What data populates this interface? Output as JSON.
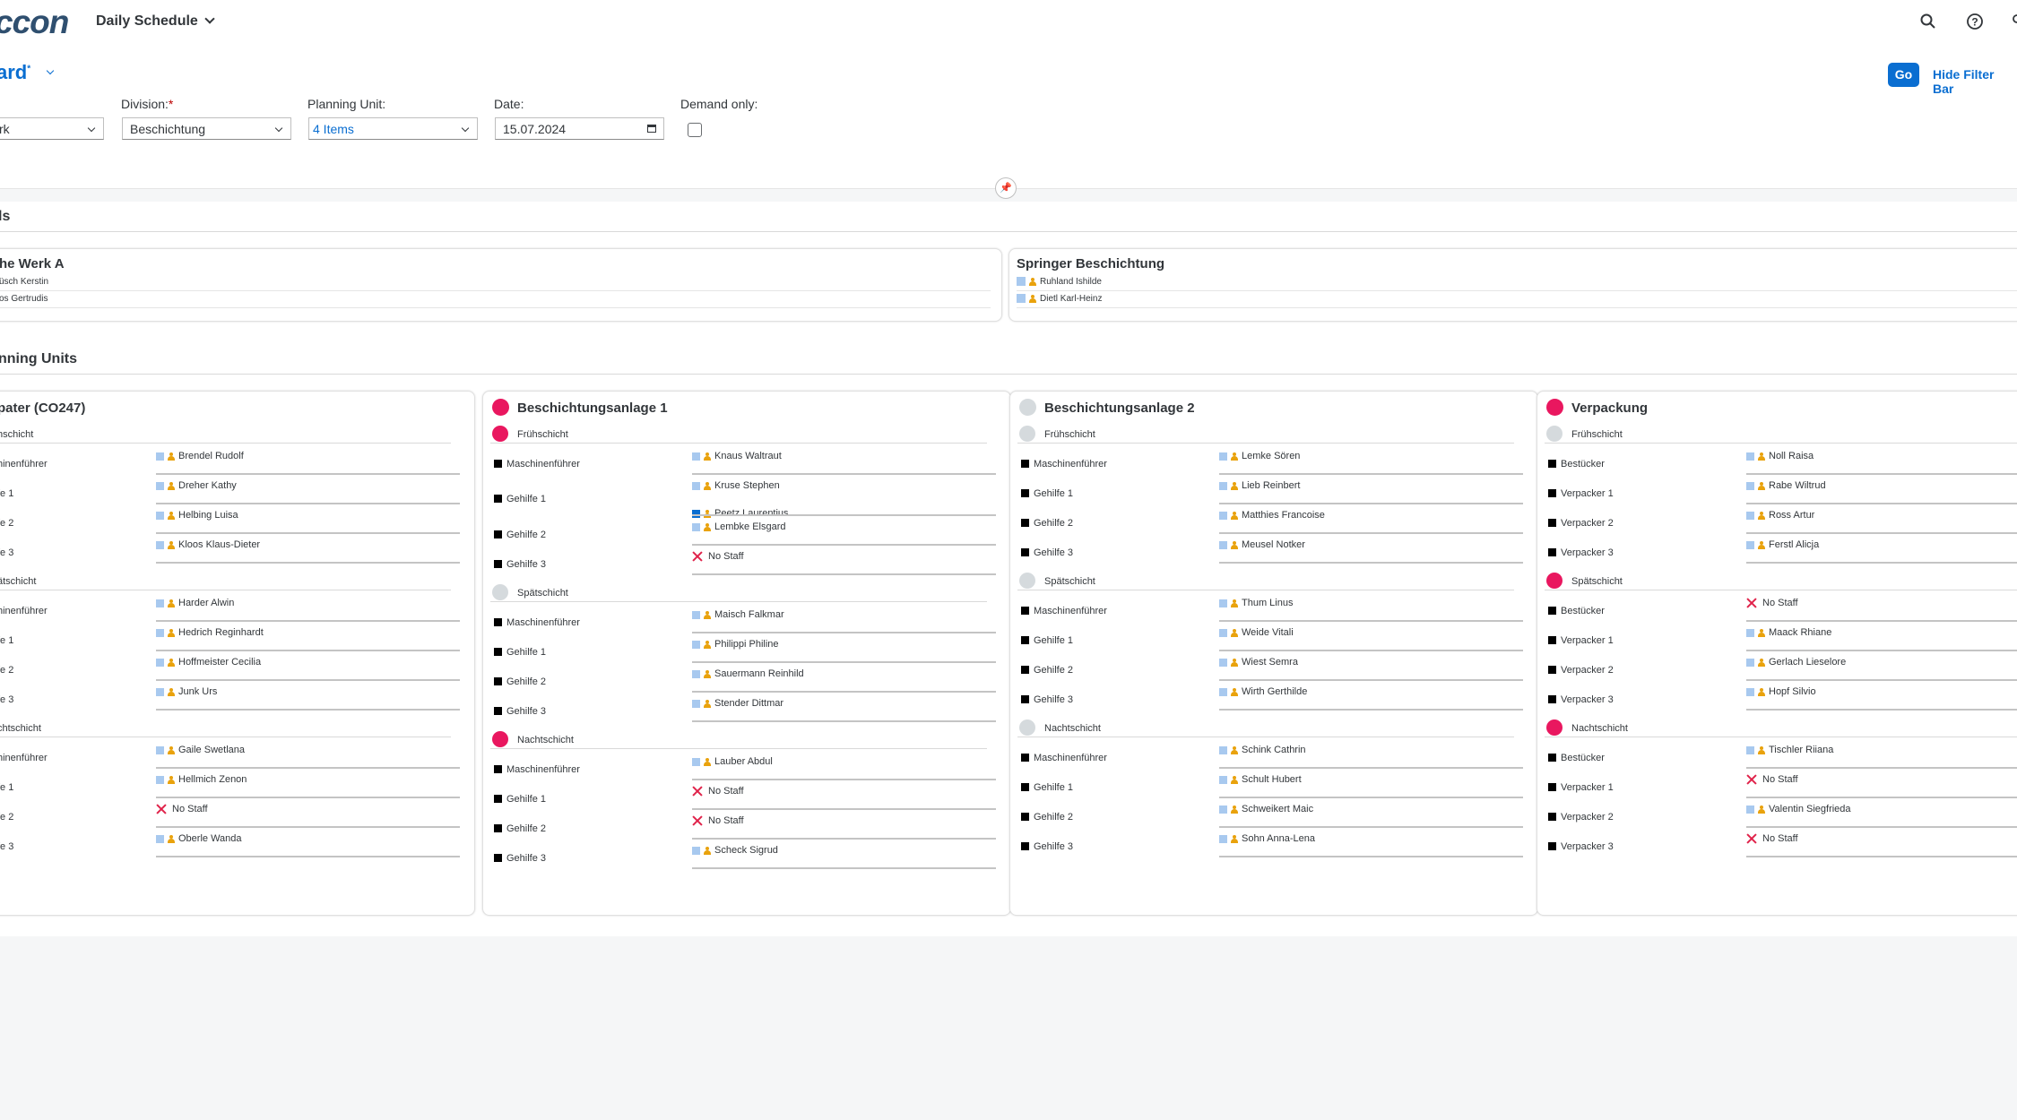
{
  "shell": {
    "logo": "ccon",
    "app_title": "Daily Schedule",
    "icons": [
      "search-icon",
      "help-icon",
      "user-icon"
    ]
  },
  "header": {
    "variant": "ard",
    "go_label": "Go",
    "hide_filter_label": "Hide Filter Bar",
    "filters": {
      "first_value": "rk",
      "division_label": "Division:",
      "division_value": "Beschichtung",
      "planning_unit_label": "Planning Unit:",
      "planning_unit_value": "4 Items",
      "date_label": "Date:",
      "date_value": "15.07.2024",
      "demand_label": "Demand only:"
    }
  },
  "sections": {
    "pools_title": "ls",
    "units_title": "nning Units"
  },
  "pools": [
    {
      "title": "he Werk A",
      "members": [
        "üsch Kerstin",
        "os Gertrudis"
      ]
    },
    {
      "title": "Springer Beschichtung",
      "members": [
        "Ruhland Ishilde",
        "Dietl Karl-Heinz"
      ]
    }
  ],
  "colors": {
    "red": "#e9175f",
    "grey": "#d5dadd",
    "accent": "#0a6ed1"
  },
  "units": [
    {
      "title": "pater (CO247)",
      "status": "none",
      "shifts": [
        {
          "name": "hschicht",
          "status": "none",
          "rows": [
            {
              "role": "hinenführer",
              "staff": [
                {
                  "name": "Brendel Rudolf"
                }
              ]
            },
            {
              "role": "fe 1",
              "staff": [
                {
                  "name": "Dreher Kathy"
                }
              ]
            },
            {
              "role": "fe 2",
              "staff": [
                {
                  "name": "Helbing Luisa"
                }
              ]
            },
            {
              "role": "fe 3",
              "staff": [
                {
                  "name": "Kloos Klaus-Dieter"
                }
              ]
            }
          ]
        },
        {
          "name": "ätschicht",
          "status": "none",
          "rows": [
            {
              "role": "hinenführer",
              "staff": [
                {
                  "name": "Harder Alwin"
                }
              ]
            },
            {
              "role": "fe 1",
              "staff": [
                {
                  "name": "Hedrich Reginhardt"
                }
              ]
            },
            {
              "role": "fe 2",
              "staff": [
                {
                  "name": "Hoffmeister Cecilia"
                }
              ]
            },
            {
              "role": "fe 3",
              "staff": [
                {
                  "name": "Junk Urs"
                }
              ]
            }
          ]
        },
        {
          "name": "chtschicht",
          "status": "none",
          "rows": [
            {
              "role": "hinenführer",
              "staff": [
                {
                  "name": "Gaile Swetlana"
                }
              ]
            },
            {
              "role": "fe 1",
              "staff": [
                {
                  "name": "Hellmich Zenon"
                }
              ]
            },
            {
              "role": "fe 2",
              "staff": [
                {
                  "name": "No Staff",
                  "none": true
                }
              ]
            },
            {
              "role": "fe 3",
              "staff": [
                {
                  "name": "Oberle Wanda"
                }
              ]
            }
          ]
        }
      ]
    },
    {
      "title": "Beschichtungsanlage 1",
      "status": "red",
      "shifts": [
        {
          "name": "Frühschicht",
          "status": "red",
          "rows": [
            {
              "role": "Maschinenführer",
              "staff": [
                {
                  "name": "Knaus Waltraut"
                }
              ]
            },
            {
              "role": "Gehilfe 1",
              "staff": [
                {
                  "name": "Kruse Stephen"
                },
                {
                  "name": "Peetz Laurentius",
                  "selected": true
                }
              ]
            },
            {
              "role": "Gehilfe 2",
              "staff": [
                {
                  "name": "Lembke Elsgard"
                }
              ]
            },
            {
              "role": "Gehilfe 3",
              "staff": [
                {
                  "name": "No Staff",
                  "none": true
                }
              ]
            }
          ]
        },
        {
          "name": "Spätschicht",
          "status": "grey",
          "rows": [
            {
              "role": "Maschinenführer",
              "staff": [
                {
                  "name": "Maisch Falkmar"
                }
              ]
            },
            {
              "role": "Gehilfe 1",
              "staff": [
                {
                  "name": "Philippi Philine"
                }
              ]
            },
            {
              "role": "Gehilfe 2",
              "staff": [
                {
                  "name": "Sauermann Reinhild"
                }
              ]
            },
            {
              "role": "Gehilfe 3",
              "staff": [
                {
                  "name": "Stender Dittmar"
                }
              ]
            }
          ]
        },
        {
          "name": "Nachtschicht",
          "status": "red",
          "rows": [
            {
              "role": "Maschinenführer",
              "staff": [
                {
                  "name": "Lauber Abdul"
                }
              ]
            },
            {
              "role": "Gehilfe 1",
              "staff": [
                {
                  "name": "No Staff",
                  "none": true
                }
              ]
            },
            {
              "role": "Gehilfe 2",
              "staff": [
                {
                  "name": "No Staff",
                  "none": true
                }
              ]
            },
            {
              "role": "Gehilfe 3",
              "staff": [
                {
                  "name": "Scheck Sigrud"
                }
              ]
            }
          ]
        }
      ]
    },
    {
      "title": "Beschichtungsanlage 2",
      "status": "grey",
      "shifts": [
        {
          "name": "Frühschicht",
          "status": "grey",
          "rows": [
            {
              "role": "Maschinenführer",
              "staff": [
                {
                  "name": "Lemke Sören"
                }
              ]
            },
            {
              "role": "Gehilfe 1",
              "staff": [
                {
                  "name": "Lieb Reinbert"
                }
              ]
            },
            {
              "role": "Gehilfe 2",
              "staff": [
                {
                  "name": "Matthies Francoise"
                }
              ]
            },
            {
              "role": "Gehilfe 3",
              "staff": [
                {
                  "name": "Meusel Notker"
                }
              ]
            }
          ]
        },
        {
          "name": "Spätschicht",
          "status": "grey",
          "rows": [
            {
              "role": "Maschinenführer",
              "staff": [
                {
                  "name": "Thum Linus"
                }
              ]
            },
            {
              "role": "Gehilfe 1",
              "staff": [
                {
                  "name": "Weide Vitali"
                }
              ]
            },
            {
              "role": "Gehilfe 2",
              "staff": [
                {
                  "name": "Wiest Semra"
                }
              ]
            },
            {
              "role": "Gehilfe 3",
              "staff": [
                {
                  "name": "Wirth Gerthilde"
                }
              ]
            }
          ]
        },
        {
          "name": "Nachtschicht",
          "status": "grey",
          "rows": [
            {
              "role": "Maschinenführer",
              "staff": [
                {
                  "name": "Schink Cathrin"
                }
              ]
            },
            {
              "role": "Gehilfe 1",
              "staff": [
                {
                  "name": "Schult Hubert"
                }
              ]
            },
            {
              "role": "Gehilfe 2",
              "staff": [
                {
                  "name": "Schweikert Maic"
                }
              ]
            },
            {
              "role": "Gehilfe 3",
              "staff": [
                {
                  "name": "Sohn Anna-Lena"
                }
              ]
            }
          ]
        }
      ]
    },
    {
      "title": "Verpackung",
      "status": "red",
      "shifts": [
        {
          "name": "Frühschicht",
          "status": "grey",
          "rows": [
            {
              "role": "Bestücker",
              "staff": [
                {
                  "name": "Noll Raisa"
                }
              ]
            },
            {
              "role": "Verpacker 1",
              "staff": [
                {
                  "name": "Rabe Wiltrud"
                }
              ]
            },
            {
              "role": "Verpacker 2",
              "staff": [
                {
                  "name": "Ross Artur"
                }
              ]
            },
            {
              "role": "Verpacker 3",
              "staff": [
                {
                  "name": "Ferstl Alicja"
                }
              ]
            }
          ]
        },
        {
          "name": "Spätschicht",
          "status": "red",
          "rows": [
            {
              "role": "Bestücker",
              "staff": [
                {
                  "name": "No Staff",
                  "none": true
                }
              ]
            },
            {
              "role": "Verpacker 1",
              "staff": [
                {
                  "name": "Maack Rhiane"
                }
              ]
            },
            {
              "role": "Verpacker 2",
              "staff": [
                {
                  "name": "Gerlach Lieselore"
                }
              ]
            },
            {
              "role": "Verpacker 3",
              "staff": [
                {
                  "name": "Hopf Silvio"
                }
              ]
            }
          ]
        },
        {
          "name": "Nachtschicht",
          "status": "red",
          "rows": [
            {
              "role": "Bestücker",
              "staff": [
                {
                  "name": "Tischler Riiana"
                }
              ]
            },
            {
              "role": "Verpacker 1",
              "staff": [
                {
                  "name": "No Staff",
                  "none": true
                }
              ]
            },
            {
              "role": "Verpacker 2",
              "staff": [
                {
                  "name": "Valentin Siegfrieda"
                }
              ]
            },
            {
              "role": "Verpacker 3",
              "staff": [
                {
                  "name": "No Staff",
                  "none": true
                }
              ]
            }
          ]
        }
      ]
    }
  ]
}
